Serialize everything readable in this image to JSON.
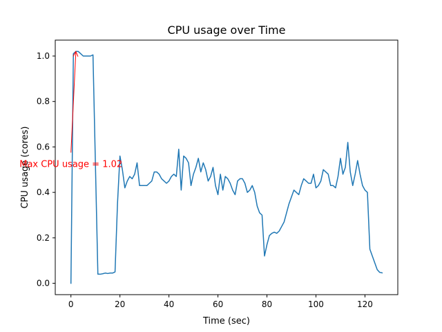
{
  "chart_data": {
    "type": "line",
    "title": "CPU usage over Time",
    "xlabel": "Time (sec)",
    "ylabel": "CPU usage (cores)",
    "xlim": [
      -6.4,
      133.4
    ],
    "ylim": [
      -0.05,
      1.07
    ],
    "xticks": [
      0,
      20,
      40,
      60,
      80,
      100,
      120
    ],
    "xtick_labels": [
      "0",
      "20",
      "40",
      "60",
      "80",
      "100",
      "120"
    ],
    "yticks": [
      0.0,
      0.2,
      0.4,
      0.6,
      0.8,
      1.0
    ],
    "ytick_labels": [
      "0.0",
      "0.2",
      "0.4",
      "0.6",
      "0.8",
      "1.0"
    ],
    "grid": false,
    "series": [
      {
        "color": "#1f77b4",
        "x": [
          0,
          1,
          2,
          3,
          4,
          5,
          6,
          7,
          8,
          9,
          10,
          11,
          12,
          13,
          14,
          15,
          16,
          17,
          18,
          19,
          20,
          21,
          22,
          23,
          24,
          25,
          26,
          27,
          28,
          29,
          30,
          31,
          32,
          33,
          34,
          35,
          36,
          37,
          38,
          39,
          40,
          41,
          42,
          43,
          44,
          45,
          46,
          47,
          48,
          49,
          50,
          51,
          52,
          53,
          54,
          55,
          56,
          57,
          58,
          59,
          60,
          61,
          62,
          63,
          64,
          65,
          66,
          67,
          68,
          69,
          70,
          71,
          72,
          73,
          74,
          75,
          76,
          77,
          78,
          79,
          80,
          81,
          82,
          83,
          84,
          85,
          86,
          87,
          88,
          89,
          90,
          91,
          92,
          93,
          94,
          95,
          96,
          97,
          98,
          99,
          100,
          101,
          102,
          103,
          104,
          105,
          106,
          107,
          108,
          109,
          110,
          111,
          112,
          113,
          114,
          115,
          116,
          117,
          118,
          119,
          120,
          121,
          122,
          123,
          124,
          125,
          126,
          127
        ],
        "y": [
          0.0,
          1.01,
          1.02,
          1.02,
          1.01,
          1.0,
          1.0,
          1.0,
          1.0,
          1.005,
          0.52,
          0.04,
          0.04,
          0.042,
          0.045,
          0.043,
          0.045,
          0.045,
          0.05,
          0.35,
          0.56,
          0.5,
          0.42,
          0.45,
          0.47,
          0.46,
          0.48,
          0.53,
          0.43,
          0.43,
          0.43,
          0.43,
          0.44,
          0.45,
          0.49,
          0.49,
          0.48,
          0.46,
          0.45,
          0.44,
          0.45,
          0.47,
          0.48,
          0.47,
          0.59,
          0.41,
          0.56,
          0.55,
          0.53,
          0.43,
          0.48,
          0.51,
          0.55,
          0.49,
          0.53,
          0.5,
          0.45,
          0.47,
          0.51,
          0.43,
          0.39,
          0.48,
          0.41,
          0.47,
          0.46,
          0.44,
          0.41,
          0.39,
          0.45,
          0.46,
          0.46,
          0.44,
          0.4,
          0.41,
          0.43,
          0.4,
          0.34,
          0.31,
          0.3,
          0.12,
          0.17,
          0.21,
          0.22,
          0.225,
          0.22,
          0.23,
          0.25,
          0.27,
          0.31,
          0.35,
          0.38,
          0.41,
          0.4,
          0.39,
          0.43,
          0.46,
          0.45,
          0.44,
          0.44,
          0.48,
          0.42,
          0.43,
          0.45,
          0.5,
          0.49,
          0.48,
          0.43,
          0.43,
          0.42,
          0.47,
          0.55,
          0.48,
          0.51,
          0.62,
          0.49,
          0.43,
          0.48,
          0.54,
          0.48,
          0.43,
          0.41,
          0.4,
          0.15,
          0.12,
          0.09,
          0.06,
          0.048,
          0.046
        ]
      }
    ],
    "annotation": {
      "text": "Max CPU usage = 1.02",
      "xy": [
        2,
        1.02
      ],
      "xytext": [
        0,
        0.575
      ],
      "color": "#ff0000"
    }
  }
}
